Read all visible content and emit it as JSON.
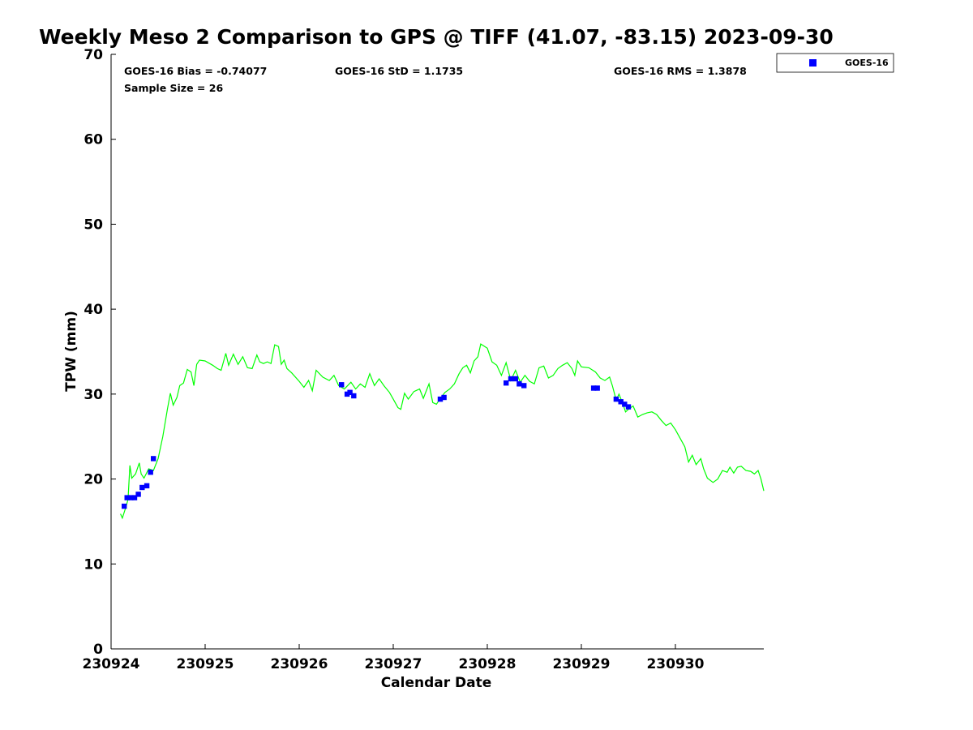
{
  "chart_data": {
    "type": "line",
    "title": "Weekly Meso 2 Comparison to GPS @ TIFF (41.07, -83.15) 2023-09-30",
    "xlabel": "Calendar Date",
    "ylabel": "TPW (mm)",
    "xlim": [
      230924,
      230930.94
    ],
    "ylim": [
      0,
      70
    ],
    "x_ticks": [
      230924,
      230925,
      230926,
      230927,
      230928,
      230929,
      230930
    ],
    "x_tick_labels": [
      "230924",
      "230925",
      "230926",
      "230927",
      "230928",
      "230929",
      "230930"
    ],
    "y_ticks": [
      0,
      10,
      20,
      30,
      40,
      50,
      60,
      70
    ],
    "y_tick_labels": [
      "0",
      "10",
      "20",
      "30",
      "40",
      "50",
      "60",
      "70"
    ],
    "grid": false,
    "legend_position": "top-right, outside plot",
    "stats": {
      "bias": "GOES-16 Bias = -0.74077",
      "std": "GOES-16 StD = 1.1735",
      "rms": "GOES-16 RMS = 1.3878",
      "sample_size": "Sample Size = 26"
    },
    "series": [
      {
        "name": "GPS",
        "kind": "line",
        "color": "#00ff00",
        "points": [
          [
            230924.1,
            15.9
          ],
          [
            230924.12,
            15.4
          ],
          [
            230924.16,
            16.8
          ],
          [
            230924.18,
            17.6
          ],
          [
            230924.2,
            21.6
          ],
          [
            230924.22,
            20.1
          ],
          [
            230924.26,
            20.6
          ],
          [
            230924.3,
            21.9
          ],
          [
            230924.32,
            20.6
          ],
          [
            230924.35,
            20.1
          ],
          [
            230924.4,
            21.2
          ],
          [
            230924.45,
            21.0
          ],
          [
            230924.5,
            22.4
          ],
          [
            230924.55,
            25.0
          ],
          [
            230924.6,
            28.3
          ],
          [
            230924.63,
            30.1
          ],
          [
            230924.66,
            28.7
          ],
          [
            230924.7,
            29.6
          ],
          [
            230924.73,
            31.0
          ],
          [
            230924.77,
            31.3
          ],
          [
            230924.81,
            32.9
          ],
          [
            230924.85,
            32.6
          ],
          [
            230924.88,
            31.0
          ],
          [
            230924.91,
            33.5
          ],
          [
            230924.94,
            34.0
          ],
          [
            230925.0,
            33.9
          ],
          [
            230925.08,
            33.4
          ],
          [
            230925.13,
            33.0
          ],
          [
            230925.17,
            32.8
          ],
          [
            230925.22,
            34.8
          ],
          [
            230925.25,
            33.4
          ],
          [
            230925.3,
            34.7
          ],
          [
            230925.35,
            33.5
          ],
          [
            230925.4,
            34.4
          ],
          [
            230925.45,
            33.1
          ],
          [
            230925.5,
            33.0
          ],
          [
            230925.55,
            34.6
          ],
          [
            230925.58,
            33.8
          ],
          [
            230925.62,
            33.6
          ],
          [
            230925.66,
            33.8
          ],
          [
            230925.7,
            33.6
          ],
          [
            230925.74,
            35.8
          ],
          [
            230925.78,
            35.6
          ],
          [
            230925.81,
            33.5
          ],
          [
            230925.84,
            34.0
          ],
          [
            230925.87,
            33.0
          ],
          [
            230925.92,
            32.5
          ],
          [
            230926.0,
            31.5
          ],
          [
            230926.05,
            30.8
          ],
          [
            230926.1,
            31.6
          ],
          [
            230926.14,
            30.4
          ],
          [
            230926.18,
            32.8
          ],
          [
            230926.25,
            32.0
          ],
          [
            230926.32,
            31.6
          ],
          [
            230926.37,
            32.2
          ],
          [
            230926.42,
            31.0
          ],
          [
            230926.48,
            30.6
          ],
          [
            230926.55,
            31.4
          ],
          [
            230926.6,
            30.6
          ],
          [
            230926.65,
            31.2
          ],
          [
            230926.7,
            30.8
          ],
          [
            230926.75,
            32.4
          ],
          [
            230926.8,
            31.0
          ],
          [
            230926.85,
            31.8
          ],
          [
            230926.9,
            31.0
          ],
          [
            230926.96,
            30.2
          ],
          [
            230927.0,
            29.4
          ],
          [
            230927.05,
            28.4
          ],
          [
            230927.08,
            28.2
          ],
          [
            230927.12,
            30.1
          ],
          [
            230927.16,
            29.4
          ],
          [
            230927.22,
            30.3
          ],
          [
            230927.28,
            30.6
          ],
          [
            230927.32,
            29.5
          ],
          [
            230927.38,
            31.2
          ],
          [
            230927.42,
            29.0
          ],
          [
            230927.46,
            28.8
          ],
          [
            230927.5,
            29.5
          ],
          [
            230927.55,
            30.2
          ],
          [
            230927.6,
            30.6
          ],
          [
            230927.65,
            31.2
          ],
          [
            230927.7,
            32.4
          ],
          [
            230927.74,
            33.1
          ],
          [
            230927.78,
            33.4
          ],
          [
            230927.82,
            32.5
          ],
          [
            230927.86,
            33.9
          ],
          [
            230927.9,
            34.4
          ],
          [
            230927.93,
            35.9
          ],
          [
            230928.0,
            35.4
          ],
          [
            230928.05,
            33.8
          ],
          [
            230928.1,
            33.4
          ],
          [
            230928.15,
            32.2
          ],
          [
            230928.2,
            33.7
          ],
          [
            230928.25,
            31.6
          ],
          [
            230928.3,
            32.8
          ],
          [
            230928.35,
            31.4
          ],
          [
            230928.4,
            32.2
          ],
          [
            230928.45,
            31.5
          ],
          [
            230928.5,
            31.2
          ],
          [
            230928.55,
            33.1
          ],
          [
            230928.6,
            33.3
          ],
          [
            230928.65,
            31.9
          ],
          [
            230928.7,
            32.2
          ],
          [
            230928.75,
            33.0
          ],
          [
            230928.8,
            33.4
          ],
          [
            230928.85,
            33.7
          ],
          [
            230928.9,
            33.0
          ],
          [
            230928.93,
            32.2
          ],
          [
            230928.96,
            33.9
          ],
          [
            230929.0,
            33.2
          ],
          [
            230929.08,
            33.1
          ],
          [
            230929.15,
            32.6
          ],
          [
            230929.2,
            31.9
          ],
          [
            230929.25,
            31.6
          ],
          [
            230929.3,
            32.0
          ],
          [
            230929.33,
            31.0
          ],
          [
            230929.37,
            29.3
          ],
          [
            230929.4,
            30.0
          ],
          [
            230929.44,
            28.9
          ],
          [
            230929.47,
            27.9
          ],
          [
            230929.5,
            28.2
          ],
          [
            230929.55,
            28.6
          ],
          [
            230929.6,
            27.3
          ],
          [
            230929.65,
            27.6
          ],
          [
            230929.7,
            27.8
          ],
          [
            230929.75,
            27.9
          ],
          [
            230929.8,
            27.6
          ],
          [
            230929.85,
            26.9
          ],
          [
            230929.9,
            26.3
          ],
          [
            230929.95,
            26.6
          ],
          [
            230930.0,
            25.8
          ],
          [
            230930.05,
            24.8
          ],
          [
            230930.1,
            23.8
          ],
          [
            230930.14,
            22.0
          ],
          [
            230930.18,
            22.8
          ],
          [
            230930.22,
            21.7
          ],
          [
            230930.27,
            22.4
          ],
          [
            230930.3,
            21.2
          ],
          [
            230930.34,
            20.1
          ],
          [
            230930.4,
            19.6
          ],
          [
            230930.45,
            20.0
          ],
          [
            230930.5,
            21.0
          ],
          [
            230930.55,
            20.8
          ],
          [
            230930.58,
            21.4
          ],
          [
            230930.62,
            20.7
          ],
          [
            230930.66,
            21.4
          ],
          [
            230930.7,
            21.5
          ],
          [
            230930.75,
            21.0
          ],
          [
            230930.8,
            20.9
          ],
          [
            230930.84,
            20.6
          ],
          [
            230930.88,
            21.0
          ],
          [
            230930.91,
            20.0
          ],
          [
            230930.94,
            18.6
          ]
        ]
      },
      {
        "name": "GOES-16",
        "kind": "scatter",
        "marker": "square",
        "color": "#0000ff",
        "points": [
          [
            230924.14,
            16.8
          ],
          [
            230924.17,
            17.8
          ],
          [
            230924.21,
            17.8
          ],
          [
            230924.25,
            17.8
          ],
          [
            230924.29,
            18.2
          ],
          [
            230924.33,
            19.0
          ],
          [
            230924.38,
            19.2
          ],
          [
            230924.42,
            20.8
          ],
          [
            230924.45,
            22.4
          ],
          [
            230926.45,
            31.1
          ],
          [
            230926.51,
            30.0
          ],
          [
            230926.54,
            30.2
          ],
          [
            230926.58,
            29.8
          ],
          [
            230927.5,
            29.4
          ],
          [
            230927.54,
            29.6
          ],
          [
            230928.2,
            31.3
          ],
          [
            230928.25,
            31.8
          ],
          [
            230928.3,
            31.8
          ],
          [
            230928.34,
            31.2
          ],
          [
            230928.39,
            31.0
          ],
          [
            230929.13,
            30.7
          ],
          [
            230929.17,
            30.7
          ],
          [
            230929.37,
            29.4
          ],
          [
            230929.42,
            29.1
          ],
          [
            230929.46,
            28.8
          ],
          [
            230929.5,
            28.5
          ]
        ]
      }
    ]
  },
  "legend": {
    "entries": [
      {
        "label": "GOES-16",
        "color": "#0000ff",
        "marker": "square"
      }
    ]
  }
}
